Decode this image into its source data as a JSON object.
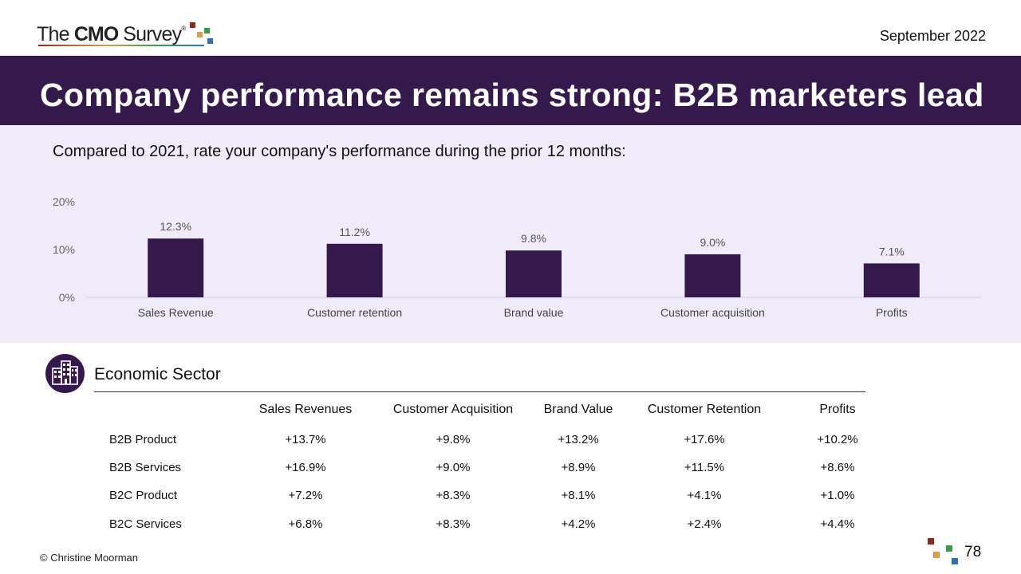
{
  "logo": {
    "text_pre": "The ",
    "text_bold": "CMO",
    "text_post": " Survey",
    "registered": "®"
  },
  "header": {
    "date": "September 2022"
  },
  "title": "Company performance remains strong: B2B marketers lead",
  "question": "Compared to 2021, rate your company's performance during the prior 12 months:",
  "chart_data": {
    "type": "bar",
    "title": "",
    "xlabel": "",
    "ylabel": "",
    "categories": [
      "Sales Revenue",
      "Customer retention",
      "Brand value",
      "Customer acquisition",
      "Profits"
    ],
    "values": [
      12.3,
      11.2,
      9.8,
      9.0,
      7.1
    ],
    "data_labels": [
      "12.3%",
      "11.2%",
      "9.8%",
      "9.0%",
      "7.1%"
    ],
    "y_ticks": [
      0,
      10,
      20
    ],
    "y_tick_labels": [
      "0%",
      "10%",
      "20%"
    ],
    "ylim": [
      0,
      20
    ],
    "grid": false,
    "legend": "none",
    "bar_color": "#341a4c"
  },
  "sector": {
    "title": "Economic Sector",
    "icon": "buildings-icon",
    "columns": [
      "Sales Revenues",
      "Customer Acquisition",
      "Brand Value",
      "Customer Retention",
      "Profits"
    ],
    "rows": [
      {
        "label": "B2B Product",
        "values": [
          "+13.7%",
          "+9.8%",
          "+13.2%",
          "+17.6%",
          "+10.2%"
        ]
      },
      {
        "label": "B2B Services",
        "values": [
          "+16.9%",
          "+9.0%",
          "+8.9%",
          "+11.5%",
          "+8.6%"
        ]
      },
      {
        "label": "B2C Product",
        "values": [
          "+7.2%",
          "+8.3%",
          "+8.1%",
          "+4.1%",
          "+1.0%"
        ]
      },
      {
        "label": "B2C Services",
        "values": [
          "+6.8%",
          "+8.3%",
          "+4.2%",
          "+2.4%",
          "+4.4%"
        ]
      }
    ]
  },
  "footer": {
    "copyright": "© Christine Moorman",
    "page_number": "78"
  },
  "colors": {
    "brand_purple": "#341a4c",
    "chart_background": "#efebf9"
  }
}
